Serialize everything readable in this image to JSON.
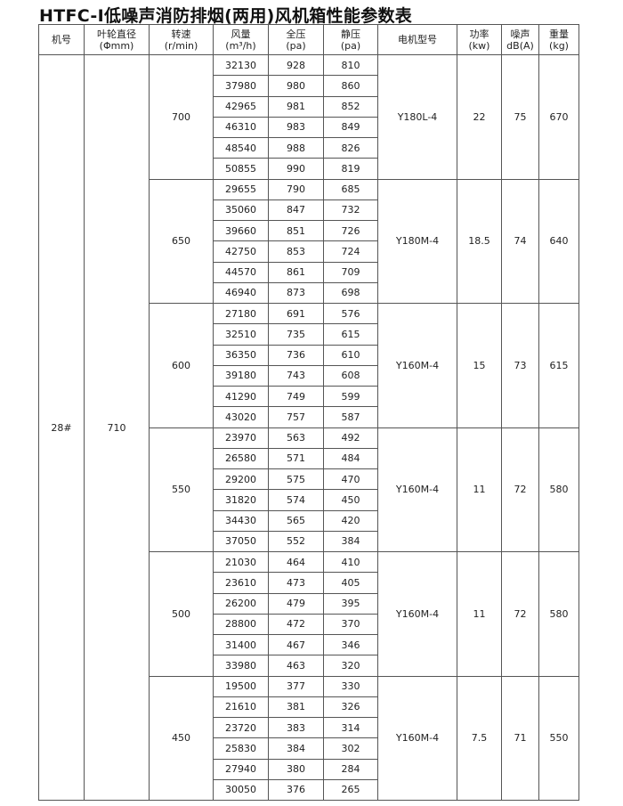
{
  "title": "HTFC-Ⅰ低噪声消防排烟(两用)风机箱性能参数表",
  "headers": [
    {
      "label": "机号",
      "unit": ""
    },
    {
      "label": "叶轮直径",
      "unit": "(Φmm)"
    },
    {
      "label": "转速",
      "unit": "(r/min)"
    },
    {
      "label": "风量",
      "unit": "(m³/h)"
    },
    {
      "label": "全压",
      "unit": "(pa)"
    },
    {
      "label": "静压",
      "unit": "(pa)"
    },
    {
      "label": "电机型号",
      "unit": ""
    },
    {
      "label": "功率",
      "unit": "(kw)"
    },
    {
      "label": "噪声",
      "unit": "dB(A)"
    },
    {
      "label": "重量",
      "unit": "(kg)"
    }
  ],
  "machine_no": "28#",
  "impeller_diameter": "710",
  "groups": [
    {
      "speed": "700",
      "motor": "Y180L-4",
      "power": "22",
      "noise": "75",
      "weight": "670",
      "rows": [
        [
          "32130",
          "928",
          "810"
        ],
        [
          "37980",
          "980",
          "860"
        ],
        [
          "42965",
          "981",
          "852"
        ],
        [
          "46310",
          "983",
          "849"
        ],
        [
          "48540",
          "988",
          "826"
        ],
        [
          "50855",
          "990",
          "819"
        ]
      ]
    },
    {
      "speed": "650",
      "motor": "Y180M-4",
      "power": "18.5",
      "noise": "74",
      "weight": "640",
      "rows": [
        [
          "29655",
          "790",
          "685"
        ],
        [
          "35060",
          "847",
          "732"
        ],
        [
          "39660",
          "851",
          "726"
        ],
        [
          "42750",
          "853",
          "724"
        ],
        [
          "44570",
          "861",
          "709"
        ],
        [
          "46940",
          "873",
          "698"
        ]
      ]
    },
    {
      "speed": "600",
      "motor": "Y160M-4",
      "power": "15",
      "noise": "73",
      "weight": "615",
      "rows": [
        [
          "27180",
          "691",
          "576"
        ],
        [
          "32510",
          "735",
          "615"
        ],
        [
          "36350",
          "736",
          "610"
        ],
        [
          "39180",
          "743",
          "608"
        ],
        [
          "41290",
          "749",
          "599"
        ],
        [
          "43020",
          "757",
          "587"
        ]
      ]
    },
    {
      "speed": "550",
      "motor": "Y160M-4",
      "power": "11",
      "noise": "72",
      "weight": "580",
      "rows": [
        [
          "23970",
          "563",
          "492"
        ],
        [
          "26580",
          "571",
          "484"
        ],
        [
          "29200",
          "575",
          "470"
        ],
        [
          "31820",
          "574",
          "450"
        ],
        [
          "34430",
          "565",
          "420"
        ],
        [
          "37050",
          "552",
          "384"
        ]
      ]
    },
    {
      "speed": "500",
      "motor": "Y160M-4",
      "power": "11",
      "noise": "72",
      "weight": "580",
      "rows": [
        [
          "21030",
          "464",
          "410"
        ],
        [
          "23610",
          "473",
          "405"
        ],
        [
          "26200",
          "479",
          "395"
        ],
        [
          "28800",
          "472",
          "370"
        ],
        [
          "31400",
          "467",
          "346"
        ],
        [
          "33980",
          "463",
          "320"
        ]
      ]
    },
    {
      "speed": "450",
      "motor": "Y160M-4",
      "power": "7.5",
      "noise": "71",
      "weight": "550",
      "rows": [
        [
          "19500",
          "377",
          "330"
        ],
        [
          "21610",
          "381",
          "326"
        ],
        [
          "23720",
          "383",
          "314"
        ],
        [
          "25830",
          "384",
          "302"
        ],
        [
          "27940",
          "380",
          "284"
        ],
        [
          "30050",
          "376",
          "265"
        ]
      ]
    }
  ]
}
